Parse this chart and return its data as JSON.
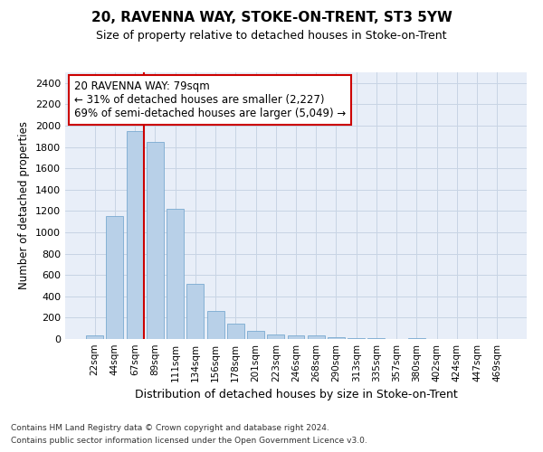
{
  "title": "20, RAVENNA WAY, STOKE-ON-TRENT, ST3 5YW",
  "subtitle": "Size of property relative to detached houses in Stoke-on-Trent",
  "xlabel": "Distribution of detached houses by size in Stoke-on-Trent",
  "ylabel": "Number of detached properties",
  "categories": [
    "22sqm",
    "44sqm",
    "67sqm",
    "89sqm",
    "111sqm",
    "134sqm",
    "156sqm",
    "178sqm",
    "201sqm",
    "223sqm",
    "246sqm",
    "268sqm",
    "290sqm",
    "313sqm",
    "335sqm",
    "357sqm",
    "380sqm",
    "402sqm",
    "424sqm",
    "447sqm",
    "469sqm"
  ],
  "values": [
    30,
    1150,
    1950,
    1850,
    1220,
    520,
    265,
    148,
    80,
    45,
    38,
    32,
    17,
    5,
    5,
    2,
    12,
    3,
    2,
    2,
    2
  ],
  "bar_color": "#b8d0e8",
  "bar_edge_color": "#7aaad0",
  "vline_color": "#cc0000",
  "vline_pos": 2.45,
  "annotation_text": "20 RAVENNA WAY: 79sqm\n← 31% of detached houses are smaller (2,227)\n69% of semi-detached houses are larger (5,049) →",
  "annotation_box_color": "#ffffff",
  "annotation_box_edge_color": "#cc0000",
  "ylim": [
    0,
    2500
  ],
  "yticks": [
    0,
    200,
    400,
    600,
    800,
    1000,
    1200,
    1400,
    1600,
    1800,
    2000,
    2200,
    2400
  ],
  "footer_line1": "Contains HM Land Registry data © Crown copyright and database right 2024.",
  "footer_line2": "Contains public sector information licensed under the Open Government Licence v3.0.",
  "grid_color": "#c8d4e4",
  "background_color": "#e8eef8"
}
